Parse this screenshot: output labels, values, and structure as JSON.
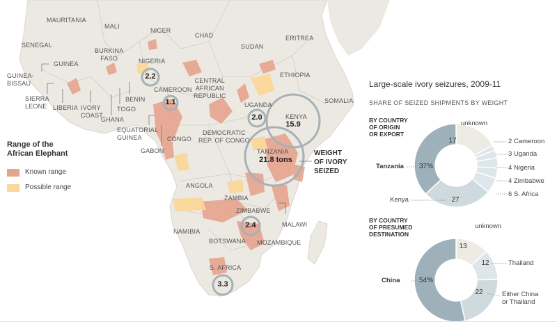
{
  "map": {
    "countries": [
      {
        "name": "MAURITANIA"
      },
      {
        "name": "MALI"
      },
      {
        "name": "NIGER"
      },
      {
        "name": "CHAD"
      },
      {
        "name": "SUDAN"
      },
      {
        "name": "ERITREA"
      },
      {
        "name": "SENEGAL"
      },
      {
        "name": "GUINEA"
      },
      {
        "name": "GUINEA-\nBISSAU"
      },
      {
        "name": "BURKINA\nFASO"
      },
      {
        "name": "NIGERIA"
      },
      {
        "name": "ETHIOPIA"
      },
      {
        "name": "SOMALIA"
      },
      {
        "name": "SIERRA\nLEONE"
      },
      {
        "name": "LIBERIA"
      },
      {
        "name": "IVORY\nCOAST"
      },
      {
        "name": "GHANA"
      },
      {
        "name": "TOGO"
      },
      {
        "name": "BENIN"
      },
      {
        "name": "CAMEROON"
      },
      {
        "name": "CENTRAL\nAFRICAN\nREPUBLIC"
      },
      {
        "name": "UGANDA"
      },
      {
        "name": "KENYA"
      },
      {
        "name": "EQUATORIAL\nGUINEA"
      },
      {
        "name": "GABON"
      },
      {
        "name": "CONGO"
      },
      {
        "name": "DEMOCRATIC\nREP. OF CONGO"
      },
      {
        "name": "TANZANIA"
      },
      {
        "name": "ANGOLA"
      },
      {
        "name": "ZAMBIA"
      },
      {
        "name": "ZIMBABWE"
      },
      {
        "name": "MALAWI"
      },
      {
        "name": "NAMIBIA"
      },
      {
        "name": "BOTSWANA"
      },
      {
        "name": "MOZAMBIQUE"
      },
      {
        "name": "S. AFRICA"
      }
    ],
    "seizures": [
      {
        "country": "Nigeria",
        "tons": "2.2"
      },
      {
        "country": "Cameroon",
        "tons": "1.1"
      },
      {
        "country": "Uganda",
        "tons": "2.0"
      },
      {
        "country": "Kenya",
        "tons": "15.9"
      },
      {
        "country": "Tanzania",
        "tons": "21.8 tons"
      },
      {
        "country": "Zimbabwe",
        "tons": "2.4"
      },
      {
        "country": "S. Africa",
        "tons": "3.3"
      }
    ],
    "weight_label": "WEIGHT\nOF IVORY\nSEIZED"
  },
  "legend": {
    "title": "Range of the\nAfrican Elephant",
    "items": [
      {
        "label": "Known range",
        "color": "#e6a48f"
      },
      {
        "label": "Possible range",
        "color": "#fbd79a"
      }
    ]
  },
  "panel": {
    "title": "Large-scale ivory seizures, 2009-11",
    "subtitle": "SHARE OF SEIZED SHIPMENTS BY WEIGHT",
    "origin": {
      "heading": "BY COUNTRY\nOF ORIGIN\nOR EXPORT",
      "tanzania_label": "Tanzania",
      "tanzania_pct": "37%",
      "kenya_label": "Kenya",
      "kenya_value": "27",
      "unknown_label": "unknown",
      "unknown_value": "17",
      "small": [
        {
          "value": "2",
          "name": "Cameroon"
        },
        {
          "value": "3",
          "name": "Uganda"
        },
        {
          "value": "4",
          "name": "Nigeria"
        },
        {
          "value": "4",
          "name": "Zimbabwe"
        },
        {
          "value": "6",
          "name": "S. Africa"
        }
      ]
    },
    "destination": {
      "heading": "BY COUNTRY\nOF PRESUMED\nDESTINATION",
      "china_label": "China",
      "china_pct": "54%",
      "unknown_label": "unknown",
      "unknown_value": "13",
      "thailand_label": "Thailand",
      "thailand_value": "12",
      "either_label": "Either China\nor Thailand",
      "either_value": "22"
    }
  },
  "chart_data": [
    {
      "type": "pie",
      "title": "By country of origin or export",
      "categories": [
        "Tanzania",
        "Kenya",
        "S. Africa",
        "Zimbabwe",
        "Nigeria",
        "Uganda",
        "Cameroon",
        "unknown"
      ],
      "values": [
        37,
        27,
        6,
        4,
        4,
        3,
        2,
        17
      ],
      "colors": [
        "#9eb0ba",
        "#cfdade",
        "#dde6ea",
        "#dde6ea",
        "#dde6ea",
        "#dde6ea",
        "#dde6ea",
        "#edece4"
      ]
    },
    {
      "type": "pie",
      "title": "By country of presumed destination",
      "categories": [
        "China",
        "Either China or Thailand",
        "Thailand",
        "unknown"
      ],
      "values": [
        54,
        22,
        12,
        13
      ],
      "colors": [
        "#9eb0ba",
        "#cfdade",
        "#dde6ea",
        "#edece4"
      ]
    }
  ]
}
